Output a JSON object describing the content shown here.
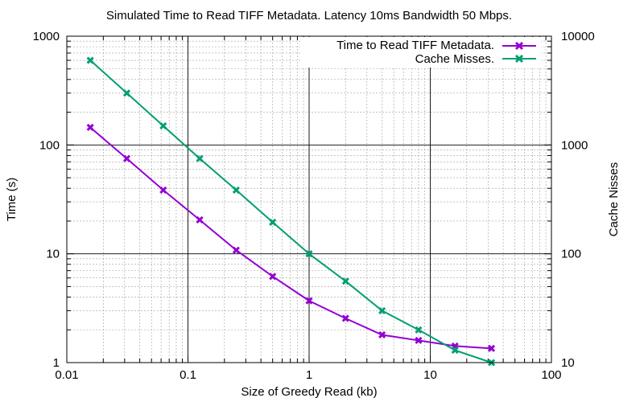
{
  "chart_data": {
    "type": "line",
    "title": "Simulated Time to Read TIFF Metadata. Latency 10ms Bandwidth 50 Mbps.",
    "xlabel": "Size of Greedy Read (kb)",
    "ylabel": "Time (s)",
    "y2label": "Cache Nisses",
    "x_scale": "log",
    "y_scale": "log",
    "y2_scale": "log",
    "xlim": [
      0.01,
      100
    ],
    "ylim": [
      1,
      1000
    ],
    "y2lim": [
      10,
      10000
    ],
    "x_ticks": [
      "0.01",
      "0.1",
      "1",
      "10",
      "100"
    ],
    "y_ticks": [
      "1",
      "10",
      "100",
      "1000"
    ],
    "y2_ticks": [
      "10",
      "100",
      "1000",
      "10000"
    ],
    "grid": true,
    "legend_position": "top-right",
    "x": [
      0.015625,
      0.03125,
      0.0625,
      0.125,
      0.25,
      0.5,
      1,
      2,
      4,
      8,
      16,
      32
    ],
    "series": [
      {
        "name": "Time to Read TIFF Metadata.",
        "axis": "left",
        "color": "#9400d3",
        "values": [
          145,
          75,
          38.5,
          20.5,
          10.8,
          6.2,
          3.7,
          2.55,
          1.8,
          1.6,
          1.42,
          1.35
        ]
      },
      {
        "name": "Cache Misses.",
        "axis": "right",
        "color": "#009e73",
        "values": [
          6000,
          3000,
          1500,
          750,
          385,
          195,
          100,
          56,
          30,
          20,
          13,
          10
        ]
      }
    ]
  }
}
